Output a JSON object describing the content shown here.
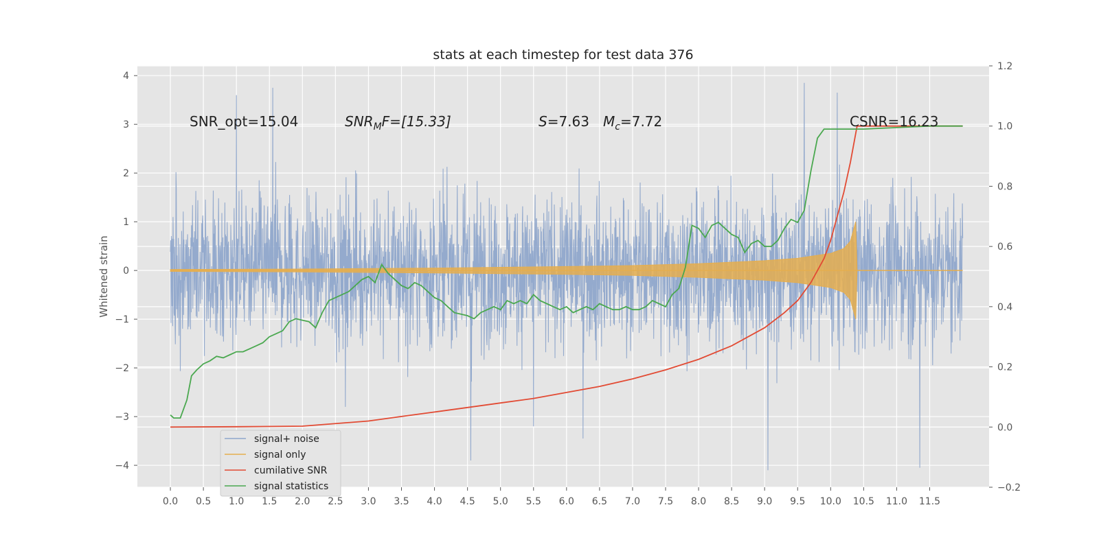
{
  "chart_data": {
    "type": "line",
    "title": "stats at each timestep for test data 376",
    "ylabel": "Whitened strain",
    "xlim": [
      -0.5,
      12.4
    ],
    "ylim": [
      -4.45,
      4.2
    ],
    "y2lim": [
      -0.2,
      1.2
    ],
    "x_ticks": [
      0.0,
      0.5,
      1.0,
      1.5,
      2.0,
      2.5,
      3.0,
      3.5,
      4.0,
      4.5,
      5.0,
      5.5,
      6.0,
      6.5,
      7.0,
      7.5,
      8.0,
      8.5,
      9.0,
      9.5,
      10.0,
      10.5,
      11.0,
      11.5
    ],
    "x_tick_labels": [
      "0.0",
      "0.5",
      "1.0",
      "1.5",
      "2.0",
      "2.5",
      "3.0",
      "3.5",
      "4.0",
      "4.5",
      "5.0",
      "5.5",
      "6.0",
      "6.5",
      "7.0",
      "7.5",
      "8.0",
      "8.5",
      "9.0",
      "9.5",
      "10.0",
      "10.5",
      "11.0",
      "11.5"
    ],
    "y_ticks": [
      -4,
      -3,
      -2,
      -1,
      0,
      1,
      2,
      3,
      4
    ],
    "y_tick_labels": [
      "−4",
      "−3",
      "−2",
      "−1",
      "0",
      "1",
      "2",
      "3",
      "4"
    ],
    "y2_ticks": [
      -0.2,
      0.0,
      0.2,
      0.4,
      0.6,
      0.8,
      1.0,
      1.2
    ],
    "y2_tick_labels": [
      "−0.2",
      "0.0",
      "0.2",
      "0.4",
      "0.6",
      "0.8",
      "1.0",
      "1.2"
    ],
    "grid": true,
    "legend_position": "lower-left",
    "colors": {
      "noise": "#8fa6cb",
      "signal": "#e5ae4f",
      "cum_snr": "#e24a33",
      "stats": "#4aa84f",
      "background": "#e5e5e5",
      "grid": "#ffffff"
    },
    "annotations": {
      "snr_opt": "SNR_opt=15.04",
      "snr_mf_base": "SNR",
      "snr_mf_sub": "M",
      "snr_mf_rest": "F=[15.33]",
      "s_name": "S",
      "s_value": "=7.63",
      "mc_base": "M",
      "mc_sub": "c",
      "mc_value": "=7.72",
      "csnr": "CSNR=16.23"
    },
    "series": [
      {
        "name": "signal+ noise",
        "axis": "left",
        "style": "noise",
        "x_range": [
          0.0,
          12.0
        ],
        "envelope_typical": [
          -2.0,
          2.0
        ],
        "extreme_points": [
          [
            1.0,
            3.6
          ],
          [
            1.55,
            3.75
          ],
          [
            2.65,
            -2.8
          ],
          [
            4.55,
            -3.9
          ],
          [
            5.5,
            -3.2
          ],
          [
            6.25,
            -3.45
          ],
          [
            9.05,
            -4.1
          ],
          [
            9.6,
            3.85
          ],
          [
            10.1,
            3.65
          ],
          [
            11.35,
            -4.05
          ]
        ]
      },
      {
        "name": "signal only",
        "axis": "left",
        "style": "signal",
        "x": [
          0.0,
          2.0,
          4.0,
          6.0,
          7.0,
          8.0,
          8.5,
          9.0,
          9.5,
          10.0,
          10.2,
          10.3,
          10.38,
          10.4,
          12.0
        ],
        "amplitude": [
          0.02,
          0.03,
          0.05,
          0.08,
          0.1,
          0.14,
          0.17,
          0.2,
          0.25,
          0.35,
          0.45,
          0.6,
          1.0,
          0.0,
          0.0
        ]
      },
      {
        "name": "cumilative SNR",
        "axis": "right",
        "x": [
          0.0,
          1.0,
          2.0,
          3.0,
          3.5,
          4.0,
          4.5,
          5.0,
          5.5,
          6.0,
          6.5,
          7.0,
          7.5,
          8.0,
          8.5,
          9.0,
          9.3,
          9.5,
          9.7,
          9.9,
          10.0,
          10.1,
          10.2,
          10.3,
          10.4,
          12.0
        ],
        "y": [
          0.0,
          0.001,
          0.003,
          0.02,
          0.035,
          0.05,
          0.065,
          0.08,
          0.095,
          0.115,
          0.135,
          0.16,
          0.19,
          0.225,
          0.27,
          0.33,
          0.38,
          0.42,
          0.48,
          0.56,
          0.62,
          0.7,
          0.78,
          0.88,
          1.0,
          1.0
        ]
      },
      {
        "name": "signal statistics",
        "axis": "right",
        "x": [
          0.0,
          0.05,
          0.15,
          0.25,
          0.32,
          0.4,
          0.5,
          0.6,
          0.7,
          0.8,
          0.9,
          1.0,
          1.1,
          1.2,
          1.3,
          1.4,
          1.5,
          1.6,
          1.7,
          1.8,
          1.9,
          2.0,
          2.1,
          2.2,
          2.3,
          2.4,
          2.5,
          2.6,
          2.7,
          2.8,
          2.9,
          3.0,
          3.1,
          3.2,
          3.3,
          3.4,
          3.5,
          3.6,
          3.7,
          3.8,
          3.9,
          4.0,
          4.1,
          4.2,
          4.3,
          4.4,
          4.5,
          4.6,
          4.7,
          4.8,
          4.9,
          5.0,
          5.1,
          5.2,
          5.3,
          5.4,
          5.5,
          5.6,
          5.7,
          5.8,
          5.9,
          6.0,
          6.1,
          6.2,
          6.3,
          6.4,
          6.5,
          6.6,
          6.7,
          6.8,
          6.9,
          7.0,
          7.1,
          7.2,
          7.3,
          7.4,
          7.5,
          7.6,
          7.7,
          7.8,
          7.9,
          8.0,
          8.1,
          8.2,
          8.3,
          8.4,
          8.5,
          8.6,
          8.7,
          8.8,
          8.9,
          9.0,
          9.1,
          9.2,
          9.3,
          9.4,
          9.5,
          9.6,
          9.7,
          9.8,
          9.9,
          10.0,
          10.5,
          11.0,
          11.5,
          12.0
        ],
        "y": [
          0.04,
          0.03,
          0.03,
          0.09,
          0.17,
          0.19,
          0.21,
          0.22,
          0.235,
          0.23,
          0.24,
          0.25,
          0.25,
          0.26,
          0.27,
          0.28,
          0.3,
          0.31,
          0.32,
          0.35,
          0.36,
          0.355,
          0.35,
          0.33,
          0.38,
          0.42,
          0.43,
          0.44,
          0.45,
          0.47,
          0.49,
          0.5,
          0.48,
          0.54,
          0.51,
          0.49,
          0.47,
          0.46,
          0.48,
          0.47,
          0.45,
          0.43,
          0.42,
          0.4,
          0.38,
          0.375,
          0.37,
          0.36,
          0.38,
          0.39,
          0.4,
          0.39,
          0.42,
          0.41,
          0.42,
          0.41,
          0.44,
          0.42,
          0.41,
          0.4,
          0.39,
          0.4,
          0.38,
          0.39,
          0.4,
          0.39,
          0.41,
          0.4,
          0.39,
          0.39,
          0.4,
          0.39,
          0.39,
          0.4,
          0.42,
          0.41,
          0.4,
          0.44,
          0.46,
          0.53,
          0.67,
          0.66,
          0.63,
          0.67,
          0.68,
          0.66,
          0.64,
          0.63,
          0.58,
          0.61,
          0.62,
          0.6,
          0.6,
          0.62,
          0.66,
          0.69,
          0.68,
          0.72,
          0.85,
          0.96,
          0.99,
          0.99,
          0.99,
          0.995,
          1.0,
          1.0
        ]
      }
    ]
  }
}
